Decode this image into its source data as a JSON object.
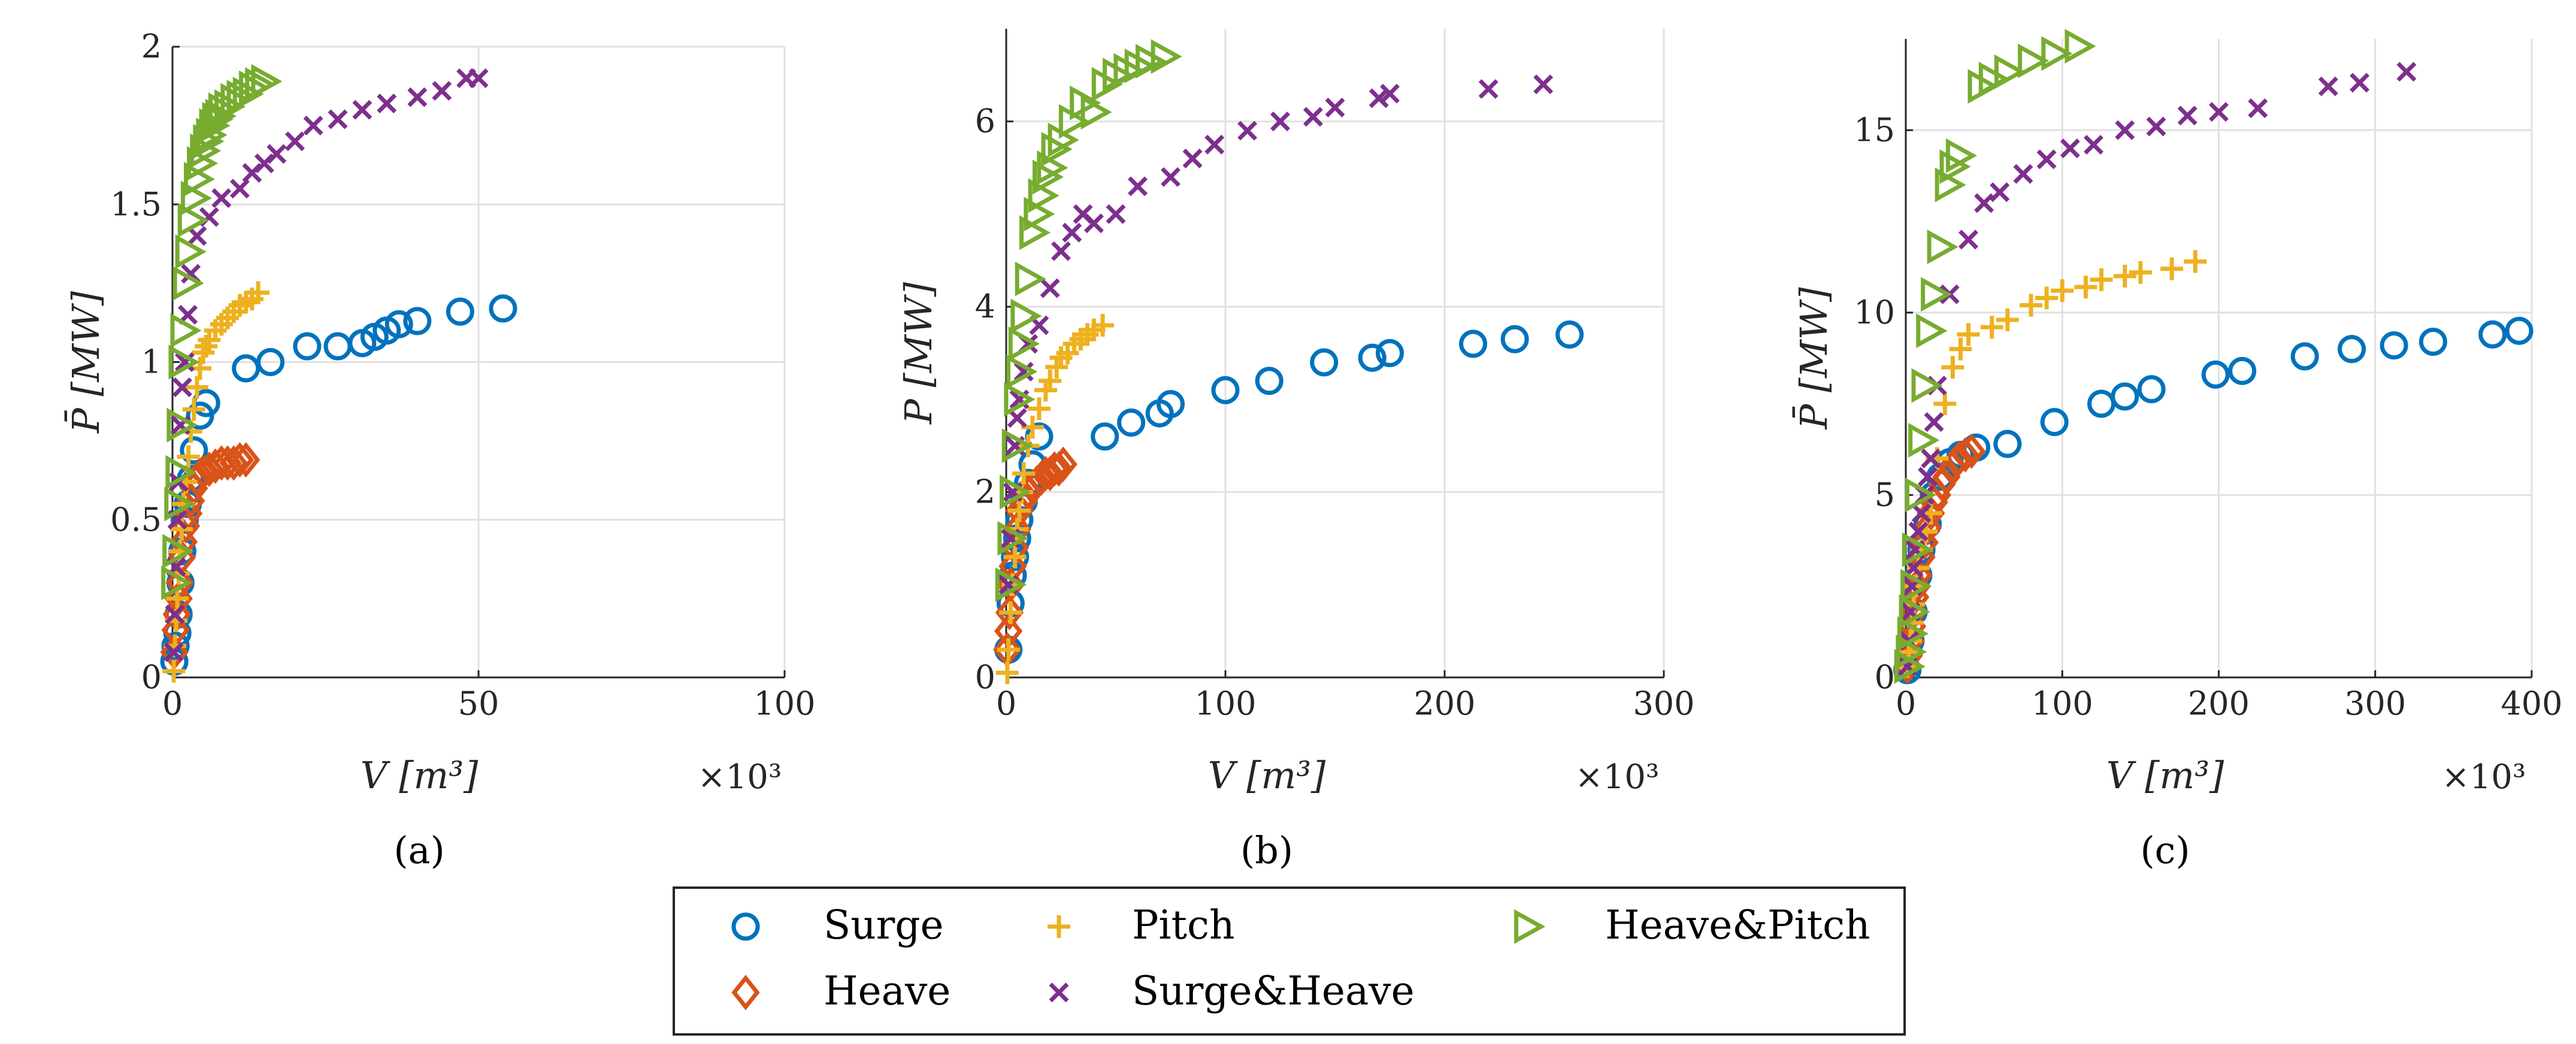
{
  "colors": {
    "Surge": "#0072BD",
    "Heave": "#D95319",
    "Pitch": "#EDB120",
    "Surge&Heave": "#7E2F8E",
    "Heave&Pitch": "#77AC30"
  },
  "markers": {
    "Surge": "circle",
    "Heave": "diamond",
    "Pitch": "plus",
    "Surge&Heave": "cross",
    "Heave&Pitch": "triangle-right"
  },
  "legend": {
    "entries": [
      "Surge",
      "Pitch",
      "Heave&Pitch",
      "Heave",
      "Surge&Heave"
    ]
  },
  "chart_data": [
    {
      "type": "scatter",
      "panel_label": "(a)",
      "title": "",
      "xlabel": "V [m³]",
      "ylabel": "P̄ [MW]",
      "x_multiplier": "×10³",
      "xlim": [
        0,
        100
      ],
      "ylim": [
        0,
        2
      ],
      "x_ticks": [
        0,
        50,
        100
      ],
      "x_tick_labels": [
        "0",
        "50",
        "100"
      ],
      "y_ticks": [
        0,
        0.5,
        1,
        1.5,
        2
      ],
      "y_tick_labels": [
        "0",
        "0.5",
        "1",
        "1.5",
        "2"
      ],
      "grid": true,
      "series": [
        {
          "name": "Surge",
          "x": [
            0.3,
            0.5,
            0.8,
            1,
            1.3,
            1.6,
            2,
            2.5,
            3,
            3.5,
            4.5,
            5.5,
            12,
            16,
            22,
            27,
            31,
            33,
            35,
            37,
            40,
            47,
            54
          ],
          "y": [
            0.05,
            0.1,
            0.14,
            0.2,
            0.3,
            0.4,
            0.5,
            0.55,
            0.63,
            0.72,
            0.83,
            0.87,
            0.98,
            1.0,
            1.05,
            1.05,
            1.06,
            1.08,
            1.1,
            1.12,
            1.13,
            1.16,
            1.17
          ]
        },
        {
          "name": "Heave",
          "x": [
            0.3,
            0.5,
            0.7,
            1,
            1.2,
            1.5,
            1.8,
            2.2,
            2.6,
            3,
            3.5,
            4,
            5,
            6,
            7,
            8,
            9,
            10,
            11,
            12
          ],
          "y": [
            0.08,
            0.15,
            0.2,
            0.25,
            0.3,
            0.38,
            0.43,
            0.48,
            0.52,
            0.56,
            0.6,
            0.63,
            0.65,
            0.66,
            0.67,
            0.68,
            0.68,
            0.68,
            0.69,
            0.69
          ]
        },
        {
          "name": "Pitch",
          "x": [
            0.2,
            0.4,
            0.6,
            0.8,
            1,
            1.2,
            1.5,
            1.8,
            2.2,
            2.6,
            3,
            3.5,
            4,
            4.5,
            5,
            5.5,
            6,
            7,
            8,
            9,
            10,
            11,
            12,
            13,
            14
          ],
          "y": [
            0.02,
            0.1,
            0.18,
            0.25,
            0.33,
            0.4,
            0.47,
            0.55,
            0.62,
            0.7,
            0.78,
            0.85,
            0.92,
            0.98,
            1.03,
            1.05,
            1.07,
            1.1,
            1.12,
            1.14,
            1.16,
            1.18,
            1.19,
            1.2,
            1.22
          ]
        },
        {
          "name": "Surge&Heave",
          "x": [
            0.2,
            0.4,
            0.6,
            0.8,
            1,
            1.3,
            1.6,
            2,
            2.5,
            3,
            4,
            6,
            8,
            11,
            13,
            15,
            17,
            20,
            23,
            27,
            31,
            35,
            40,
            44,
            48,
            50
          ],
          "y": [
            0.08,
            0.2,
            0.35,
            0.5,
            0.62,
            0.8,
            0.92,
            1.0,
            1.15,
            1.28,
            1.4,
            1.46,
            1.52,
            1.55,
            1.6,
            1.63,
            1.66,
            1.7,
            1.75,
            1.77,
            1.8,
            1.82,
            1.84,
            1.86,
            1.9,
            1.9
          ]
        },
        {
          "name": "Heave&Pitch",
          "x": [
            0.3,
            0.5,
            0.8,
            1,
            1.2,
            1.5,
            1.8,
            2.2,
            2.6,
            3,
            3.5,
            4,
            4.5,
            5,
            5.5,
            6,
            6.5,
            7,
            7.5,
            8,
            9,
            10,
            11,
            12,
            13,
            14,
            15
          ],
          "y": [
            0.3,
            0.4,
            0.55,
            0.65,
            0.8,
            1.0,
            1.1,
            1.25,
            1.35,
            1.45,
            1.52,
            1.58,
            1.63,
            1.67,
            1.7,
            1.72,
            1.75,
            1.77,
            1.78,
            1.8,
            1.81,
            1.83,
            1.84,
            1.85,
            1.87,
            1.88,
            1.89
          ]
        }
      ]
    },
    {
      "type": "scatter",
      "panel_label": "(b)",
      "title": "",
      "xlabel": "V [m³]",
      "ylabel": "P [MW]",
      "x_multiplier": "×10³",
      "xlim": [
        0,
        300
      ],
      "ylim": [
        0,
        7
      ],
      "x_ticks": [
        0,
        100,
        200,
        300
      ],
      "x_tick_labels": [
        "0",
        "100",
        "200",
        "300"
      ],
      "y_ticks": [
        0,
        2,
        4,
        6
      ],
      "y_tick_labels": [
        "0",
        "2",
        "4",
        "6"
      ],
      "grid": true,
      "series": [
        {
          "name": "Surge",
          "x": [
            1,
            2,
            3,
            4,
            5,
            6,
            8,
            10,
            12,
            15,
            45,
            57,
            70,
            75,
            100,
            120,
            145,
            167,
            175,
            213,
            232,
            257
          ],
          "y": [
            0.3,
            0.8,
            1.1,
            1.3,
            1.5,
            1.7,
            1.9,
            2.1,
            2.3,
            2.6,
            2.6,
            2.75,
            2.85,
            2.95,
            3.1,
            3.2,
            3.4,
            3.45,
            3.5,
            3.6,
            3.65,
            3.7
          ]
        },
        {
          "name": "Heave",
          "x": [
            0.5,
            1,
            1.5,
            2,
            3,
            4,
            5,
            6,
            8,
            10,
            12,
            14,
            16,
            18,
            20,
            22,
            24,
            26
          ],
          "y": [
            0.3,
            0.5,
            0.7,
            1.0,
            1.2,
            1.4,
            1.6,
            1.8,
            1.9,
            2.0,
            2.05,
            2.1,
            2.15,
            2.2,
            2.2,
            2.25,
            2.25,
            2.3
          ]
        },
        {
          "name": "Pitch",
          "x": [
            0.5,
            1,
            2,
            3,
            4,
            5,
            6,
            7,
            8,
            10,
            12,
            15,
            18,
            20,
            23,
            25,
            28,
            31,
            34,
            37,
            40,
            44
          ],
          "y": [
            0.05,
            0.3,
            0.7,
            1.0,
            1.3,
            1.6,
            1.8,
            2.0,
            2.2,
            2.5,
            2.7,
            2.9,
            3.1,
            3.2,
            3.35,
            3.45,
            3.5,
            3.6,
            3.65,
            3.7,
            3.75,
            3.8
          ]
        },
        {
          "name": "Surge&Heave",
          "x": [
            1,
            2,
            3,
            4,
            5,
            6,
            8,
            10,
            15,
            20,
            25,
            30,
            35,
            40,
            50,
            60,
            75,
            85,
            95,
            110,
            125,
            140,
            150,
            170,
            175,
            220,
            245
          ],
          "y": [
            1.0,
            1.5,
            2.0,
            2.5,
            2.8,
            3.0,
            3.3,
            3.6,
            3.8,
            4.2,
            4.6,
            4.8,
            5.0,
            4.9,
            5.0,
            5.3,
            5.4,
            5.6,
            5.75,
            5.9,
            6.0,
            6.05,
            6.15,
            6.25,
            6.3,
            6.35,
            6.4
          ]
        },
        {
          "name": "Heave&Pitch",
          "x": [
            1,
            2,
            3,
            4,
            5,
            6,
            7,
            8,
            10,
            12,
            14,
            16,
            18,
            20,
            22,
            25,
            30,
            35,
            40,
            45,
            50,
            55,
            60,
            65,
            72
          ],
          "y": [
            1.0,
            1.5,
            2.0,
            2.5,
            3.0,
            3.3,
            3.6,
            3.9,
            4.3,
            4.8,
            5.0,
            5.2,
            5.4,
            5.5,
            5.7,
            5.8,
            6.0,
            6.2,
            6.1,
            6.4,
            6.5,
            6.55,
            6.6,
            6.65,
            6.7
          ]
        }
      ]
    },
    {
      "type": "scatter",
      "panel_label": "(c)",
      "title": "",
      "xlabel": "V [m³]",
      "ylabel": "P̄ [MW]",
      "x_multiplier": "×10³",
      "xlim": [
        0,
        400
      ],
      "ylim": [
        0,
        17.5
      ],
      "x_ticks": [
        0,
        100,
        200,
        300,
        400
      ],
      "x_tick_labels": [
        "0",
        "100",
        "200",
        "300",
        "400"
      ],
      "y_ticks": [
        0,
        5,
        10,
        15
      ],
      "y_tick_labels": [
        "0",
        "5",
        "10",
        "15"
      ],
      "grid": true,
      "series": [
        {
          "name": "Surge",
          "x": [
            1,
            3,
            5,
            8,
            10,
            14,
            18,
            22,
            28,
            35,
            45,
            65,
            95,
            125,
            140,
            157,
            198,
            215,
            255,
            285,
            312,
            337,
            375,
            392
          ],
          "y": [
            0.2,
            1.0,
            1.8,
            2.8,
            3.5,
            4.2,
            5.0,
            5.5,
            5.9,
            6.1,
            6.3,
            6.4,
            7.0,
            7.5,
            7.7,
            7.9,
            8.3,
            8.4,
            8.8,
            9.0,
            9.1,
            9.2,
            9.4,
            9.5
          ]
        },
        {
          "name": "Heave",
          "x": [
            1,
            2,
            3,
            4,
            5,
            6,
            7,
            8,
            10,
            12,
            14,
            16,
            18,
            20,
            23,
            26,
            30,
            34,
            38,
            42
          ],
          "y": [
            0.3,
            0.6,
            1.0,
            1.4,
            1.8,
            2.2,
            2.5,
            2.8,
            3.3,
            3.7,
            4.1,
            4.5,
            4.8,
            5.0,
            5.3,
            5.5,
            5.8,
            6.0,
            6.1,
            6.2
          ]
        },
        {
          "name": "Pitch",
          "x": [
            1,
            2,
            3,
            4,
            5,
            6,
            8,
            10,
            13,
            16,
            20,
            25,
            30,
            35,
            40,
            55,
            65,
            80,
            90,
            100,
            115,
            125,
            140,
            150,
            170,
            185
          ],
          "y": [
            0.3,
            0.7,
            1.0,
            1.5,
            2.0,
            2.5,
            3.0,
            3.5,
            4.0,
            4.5,
            6.0,
            7.5,
            8.5,
            9.0,
            9.4,
            9.6,
            9.8,
            10.2,
            10.4,
            10.6,
            10.7,
            10.9,
            11.0,
            11.1,
            11.2,
            11.4
          ]
        },
        {
          "name": "Surge&Heave",
          "x": [
            1,
            2,
            3,
            4,
            5,
            6,
            8,
            10,
            12,
            14,
            16,
            18,
            20,
            28,
            40,
            50,
            60,
            75,
            90,
            105,
            120,
            140,
            160,
            180,
            200,
            225,
            270,
            290,
            320
          ],
          "y": [
            0.3,
            1.0,
            1.8,
            2.5,
            3.0,
            3.5,
            4.0,
            4.5,
            5.0,
            5.5,
            6.0,
            7.0,
            8.0,
            10.5,
            12.0,
            13.0,
            13.3,
            13.8,
            14.2,
            14.5,
            14.6,
            15.0,
            15.1,
            15.4,
            15.5,
            15.6,
            16.2,
            16.3,
            16.6
          ]
        },
        {
          "name": "Heave&Pitch",
          "x": [
            1,
            2,
            3,
            4,
            5,
            6,
            8,
            10,
            12,
            15,
            18,
            22,
            27,
            30,
            34,
            48,
            55,
            65,
            80,
            95,
            110
          ],
          "y": [
            0.3,
            0.7,
            1.2,
            1.8,
            2.5,
            3.5,
            5.0,
            6.5,
            8.0,
            9.5,
            10.5,
            11.8,
            13.5,
            14.0,
            14.3,
            16.2,
            16.4,
            16.6,
            16.9,
            17.1,
            17.3
          ]
        }
      ]
    }
  ]
}
